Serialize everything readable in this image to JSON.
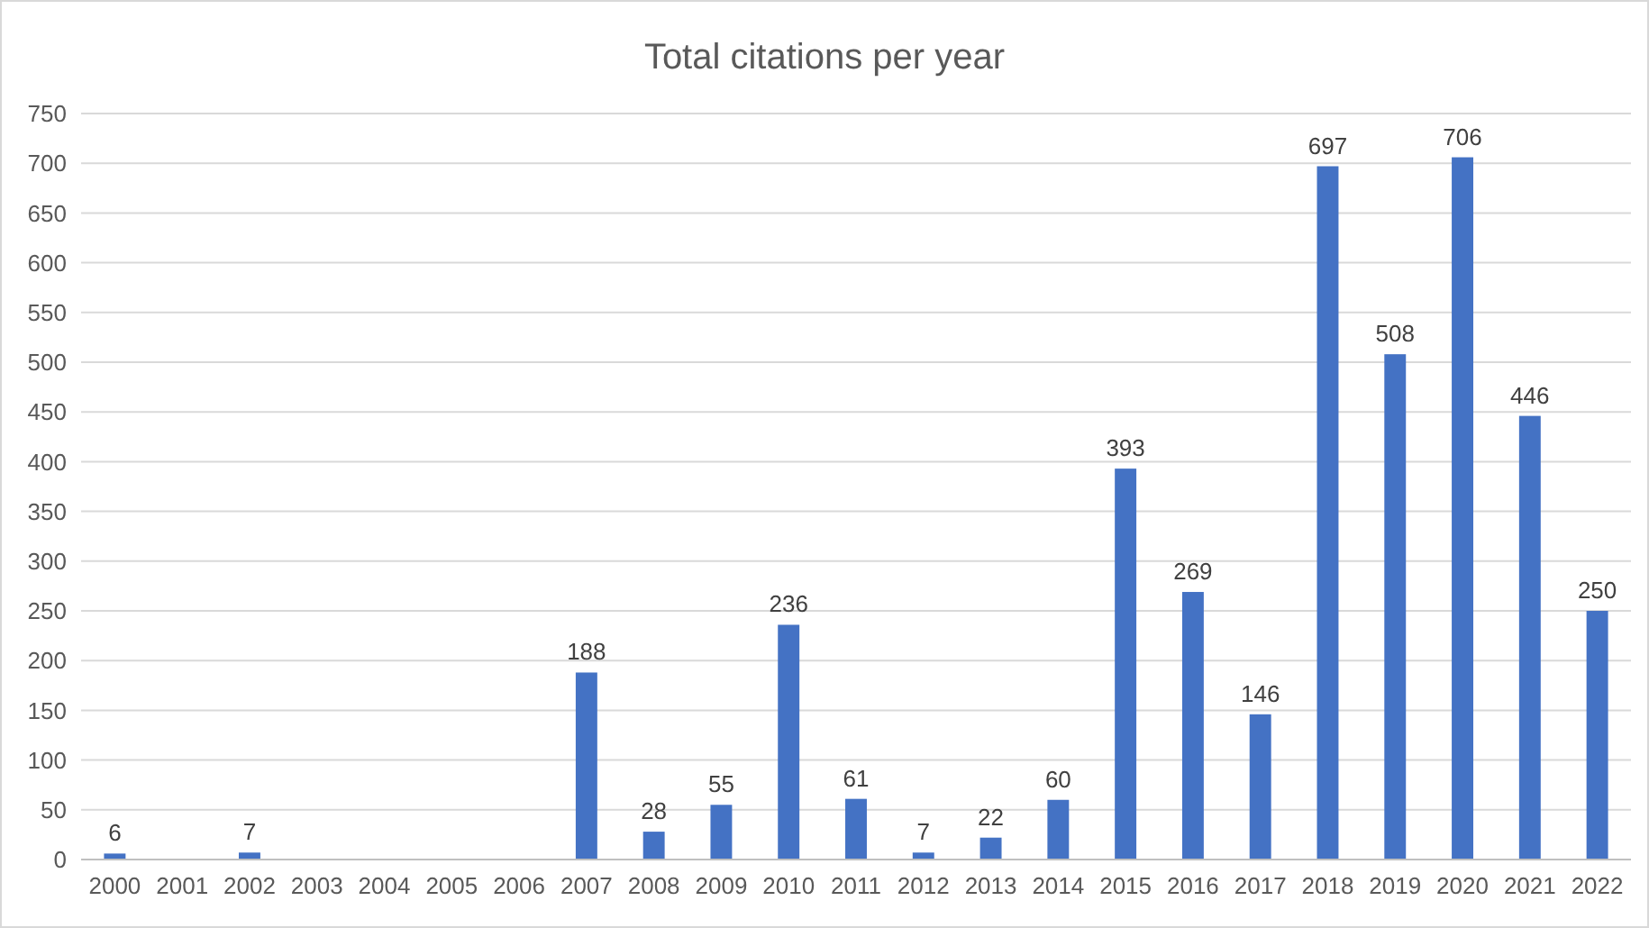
{
  "chart_data": {
    "type": "bar",
    "title": "Total citations per year",
    "categories": [
      "2000",
      "2001",
      "2002",
      "2003",
      "2004",
      "2005",
      "2006",
      "2007",
      "2008",
      "2009",
      "2010",
      "2011",
      "2012",
      "2013",
      "2014",
      "2015",
      "2016",
      "2017",
      "2018",
      "2019",
      "2020",
      "2021",
      "2022"
    ],
    "values": [
      6,
      null,
      7,
      null,
      null,
      null,
      null,
      188,
      28,
      55,
      236,
      61,
      7,
      22,
      60,
      393,
      269,
      146,
      697,
      508,
      706,
      446,
      250
    ],
    "color": "#4472c4",
    "ylim": [
      0,
      750
    ],
    "yticks": [
      0,
      50,
      100,
      150,
      200,
      250,
      300,
      350,
      400,
      450,
      500,
      550,
      600,
      650,
      700,
      750
    ],
    "grid": "y",
    "data_labels": true
  }
}
